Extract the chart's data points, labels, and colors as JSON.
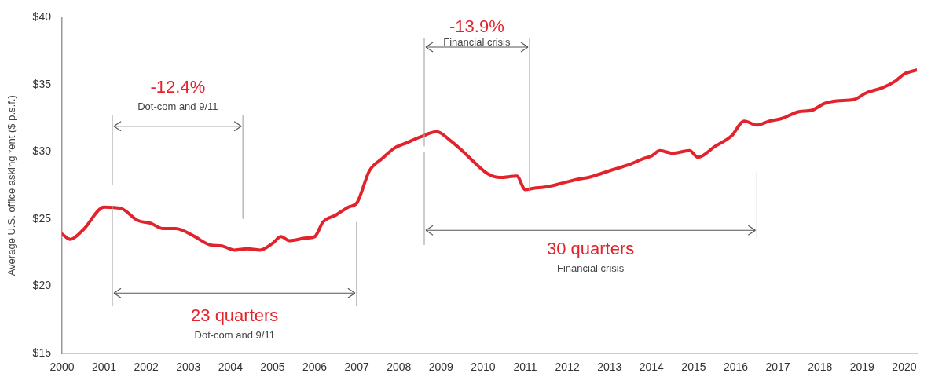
{
  "chart_data": {
    "type": "line",
    "ylabel": "Average U.S. office asking rent ($ p.s.f.)",
    "x": [
      2000.0,
      2000.2,
      2000.5,
      2001.0,
      2001.4,
      2001.8,
      2002.1,
      2002.4,
      2002.7,
      2003.1,
      2003.5,
      2003.8,
      2004.1,
      2004.4,
      2004.7,
      2005.0,
      2005.2,
      2005.4,
      2005.8,
      2006.0,
      2006.2,
      2006.5,
      2006.8,
      2007.0,
      2007.3,
      2007.6,
      2007.9,
      2008.2,
      2008.5,
      2008.9,
      2009.2,
      2009.5,
      2009.8,
      2010.1,
      2010.4,
      2010.8,
      2011.0,
      2011.2,
      2011.5,
      2011.9,
      2012.3,
      2012.5,
      2013.0,
      2013.5,
      2013.8,
      2014.0,
      2014.2,
      2014.5,
      2014.9,
      2015.1,
      2015.5,
      2015.9,
      2016.2,
      2016.5,
      2016.8,
      2017.1,
      2017.5,
      2017.8,
      2018.1,
      2018.4,
      2018.8,
      2019.1,
      2019.5,
      2019.8,
      2020.0,
      2020.3
    ],
    "series": [
      {
        "color": "#e3232c",
        "values": [
          23.9,
          23.5,
          24.2,
          25.9,
          25.8,
          24.9,
          24.7,
          24.3,
          24.3,
          23.8,
          23.1,
          23.0,
          22.7,
          22.8,
          22.7,
          23.2,
          23.7,
          23.4,
          23.6,
          23.7,
          24.8,
          25.3,
          25.9,
          26.2,
          28.6,
          29.5,
          30.3,
          30.7,
          31.1,
          31.5,
          30.9,
          30.1,
          29.2,
          28.4,
          28.1,
          28.2,
          27.2,
          27.3,
          27.4,
          27.7,
          28.0,
          28.1,
          28.6,
          29.1,
          29.5,
          29.7,
          30.1,
          29.9,
          30.1,
          29.6,
          30.4,
          31.2,
          32.3,
          32.0,
          32.3,
          32.5,
          33.0,
          33.1,
          33.6,
          33.8,
          33.9,
          34.4,
          34.8,
          35.3,
          35.8,
          36.1
        ]
      }
    ],
    "xlim": [
      2000,
      2020.3
    ],
    "xticks": [
      2000,
      2001,
      2002,
      2003,
      2004,
      2005,
      2006,
      2007,
      2008,
      2009,
      2010,
      2011,
      2012,
      2013,
      2014,
      2015,
      2016,
      2017,
      2018,
      2019,
      2020
    ],
    "ylim": [
      15,
      40
    ],
    "yticks": [
      {
        "value": 15,
        "label": "$15"
      },
      {
        "value": 20,
        "label": "$20"
      },
      {
        "value": 25,
        "label": "$25"
      },
      {
        "value": 30,
        "label": "$30"
      },
      {
        "value": 35,
        "label": "$35"
      },
      {
        "value": 40,
        "label": "$40"
      }
    ],
    "annotations": [
      "-12.4%",
      "Dot-com and 9/11",
      "23 quarters",
      "Dot-com and 9/11",
      "-13.9%",
      "Financial crisis",
      "30 quarters",
      "Financial crisis"
    ],
    "grid": false,
    "legend": false,
    "marker": "none",
    "line_style": "solid"
  }
}
